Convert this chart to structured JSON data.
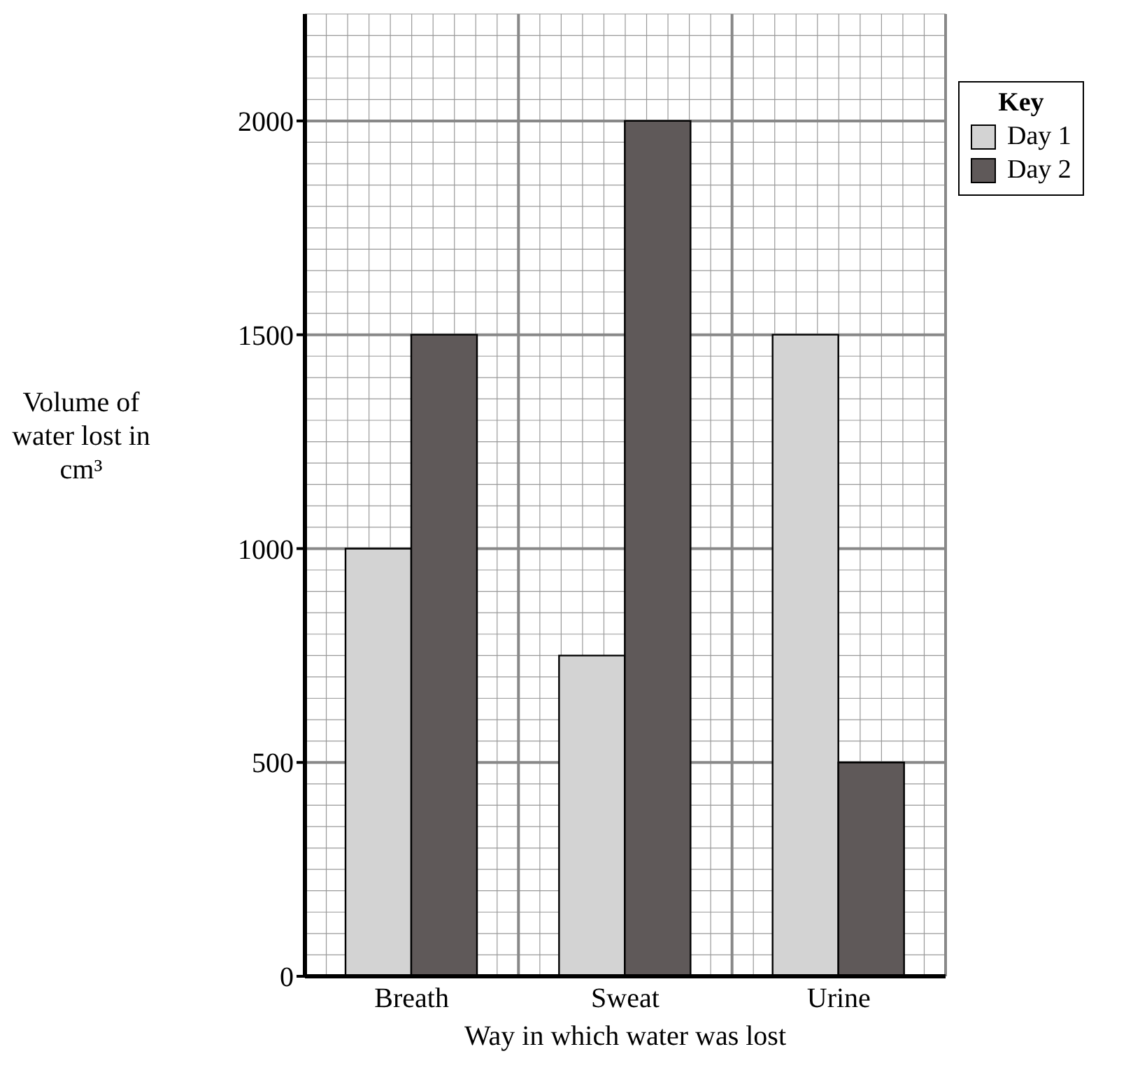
{
  "chart_data": {
    "type": "bar",
    "xlabel": "Way in which water was lost",
    "ylabel": "Volume of water lost in cm³",
    "legend_title": "Key",
    "categories": [
      "Breath",
      "Sweat",
      "Urine"
    ],
    "series": [
      {
        "name": "Day 1",
        "color": "#d3d3d3",
        "values": [
          1000,
          750,
          1500
        ]
      },
      {
        "name": "Day 2",
        "color": "#5f5959",
        "values": [
          1500,
          2000,
          500
        ]
      }
    ],
    "ylim": [
      0,
      2250
    ],
    "yticks": [
      0,
      500,
      1000,
      1500,
      2000
    ],
    "grid": true,
    "legend": "top right"
  }
}
